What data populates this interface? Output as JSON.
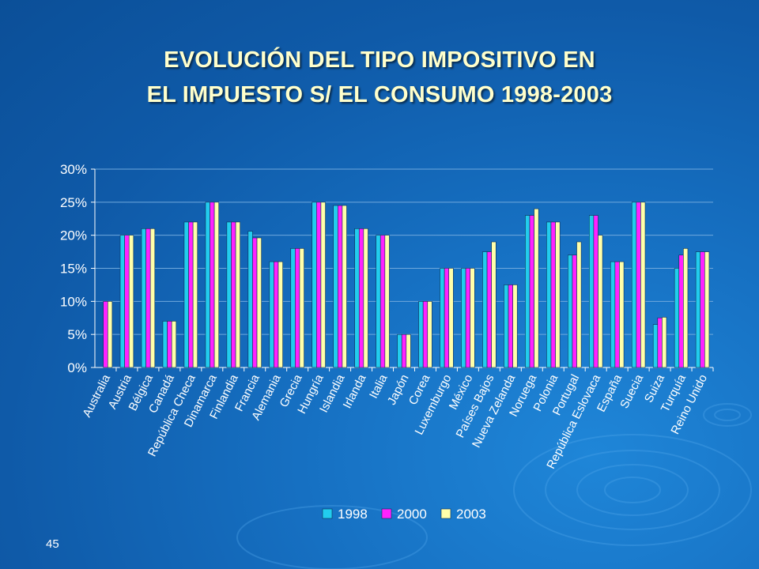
{
  "slide": {
    "title_line1": "EVOLUCIÓN DEL TIPO IMPOSITIVO EN",
    "title_line2": "EL IMPUESTO S/ EL CONSUMO 1998-2003",
    "page_number": "45"
  },
  "colors": {
    "series_1998": "#22ccee",
    "series_2000": "#ff22ff",
    "series_2003": "#ffffaa",
    "text": "#ffffff",
    "title": "#ffffcc"
  },
  "chart_data": {
    "type": "bar",
    "title": "",
    "xlabel": "",
    "ylabel": "",
    "ylim": [
      0,
      0.3
    ],
    "yticks": [
      0,
      0.05,
      0.1,
      0.15,
      0.2,
      0.25,
      0.3
    ],
    "ytick_labels": [
      "0%",
      "5%",
      "10%",
      "15%",
      "20%",
      "25%",
      "30%"
    ],
    "grid": true,
    "legend_position": "bottom-right",
    "categories": [
      "Australia",
      "Austria",
      "Bélgica",
      "Canadá",
      "República Checa",
      "Dinamarca",
      "Finlandia",
      "Francia",
      "Alemania",
      "Grecia",
      "Hungría",
      "Islandia",
      "Irlanda",
      "Italia",
      "Japón",
      "Corea",
      "Luxemburgo",
      "México",
      "Países Bajos",
      "Nueva Zelanda",
      "Noruega",
      "Polonia",
      "Portugal",
      "República Eslovaca",
      "España",
      "Suecia",
      "Suiza",
      "Turquía",
      "Reino Unido"
    ],
    "series": [
      {
        "name": "1998",
        "values": [
          0,
          0.2,
          0.21,
          0.07,
          0.22,
          0.25,
          0.22,
          0.206,
          0.16,
          0.18,
          0.25,
          0.245,
          0.21,
          0.2,
          0.05,
          0.1,
          0.15,
          0.15,
          0.175,
          0.125,
          0.23,
          0.22,
          0.17,
          0.23,
          0.16,
          0.25,
          0.065,
          0.15,
          0.175
        ]
      },
      {
        "name": "2000",
        "values": [
          0.1,
          0.2,
          0.21,
          0.07,
          0.22,
          0.25,
          0.22,
          0.196,
          0.16,
          0.18,
          0.25,
          0.245,
          0.21,
          0.2,
          0.05,
          0.1,
          0.15,
          0.15,
          0.175,
          0.125,
          0.23,
          0.22,
          0.17,
          0.23,
          0.16,
          0.25,
          0.075,
          0.17,
          0.175
        ]
      },
      {
        "name": "2003",
        "values": [
          0.1,
          0.2,
          0.21,
          0.07,
          0.22,
          0.25,
          0.22,
          0.196,
          0.16,
          0.18,
          0.25,
          0.245,
          0.21,
          0.2,
          0.05,
          0.1,
          0.15,
          0.15,
          0.19,
          0.125,
          0.24,
          0.22,
          0.19,
          0.2,
          0.16,
          0.25,
          0.076,
          0.18,
          0.175
        ]
      }
    ]
  }
}
